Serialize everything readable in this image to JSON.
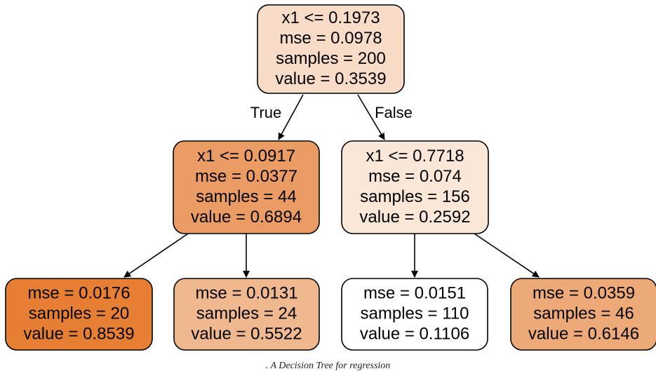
{
  "diagram": {
    "nodes": [
      {
        "id": "root",
        "lines": [
          "x1 <= 0.1973",
          "mse = 0.0978",
          "samples = 200",
          "value = 0.3539"
        ],
        "fill": "#f9dcc8"
      },
      {
        "id": "left",
        "lines": [
          "x1 <= 0.0917",
          "mse = 0.0377",
          "samples = 44",
          "value = 0.6894"
        ],
        "fill": "#ea9c64"
      },
      {
        "id": "right",
        "lines": [
          "x1 <= 0.7718",
          "mse = 0.074",
          "samples = 156",
          "value = 0.2592"
        ],
        "fill": "#fbe7d8"
      },
      {
        "id": "leaf1",
        "lines": [
          "mse = 0.0176",
          "samples = 20",
          "value = 0.8539"
        ],
        "fill": "#e67f34"
      },
      {
        "id": "leaf2",
        "lines": [
          "mse = 0.0131",
          "samples = 24",
          "value = 0.5522"
        ],
        "fill": "#f0b88f"
      },
      {
        "id": "leaf3",
        "lines": [
          "mse = 0.0151",
          "samples = 110",
          "value = 0.1106"
        ],
        "fill": "#ffffff"
      },
      {
        "id": "leaf4",
        "lines": [
          "mse = 0.0359",
          "samples = 46",
          "value = 0.6146"
        ],
        "fill": "#eda977"
      }
    ],
    "edges": [
      {
        "from": "root",
        "to": "left",
        "label": "True"
      },
      {
        "from": "root",
        "to": "right",
        "label": "False"
      },
      {
        "from": "left",
        "to": "leaf1",
        "label": ""
      },
      {
        "from": "left",
        "to": "leaf2",
        "label": ""
      },
      {
        "from": "right",
        "to": "leaf3",
        "label": ""
      },
      {
        "from": "right",
        "to": "leaf4",
        "label": ""
      }
    ]
  },
  "caption": ". A Decision Tree for regression"
}
